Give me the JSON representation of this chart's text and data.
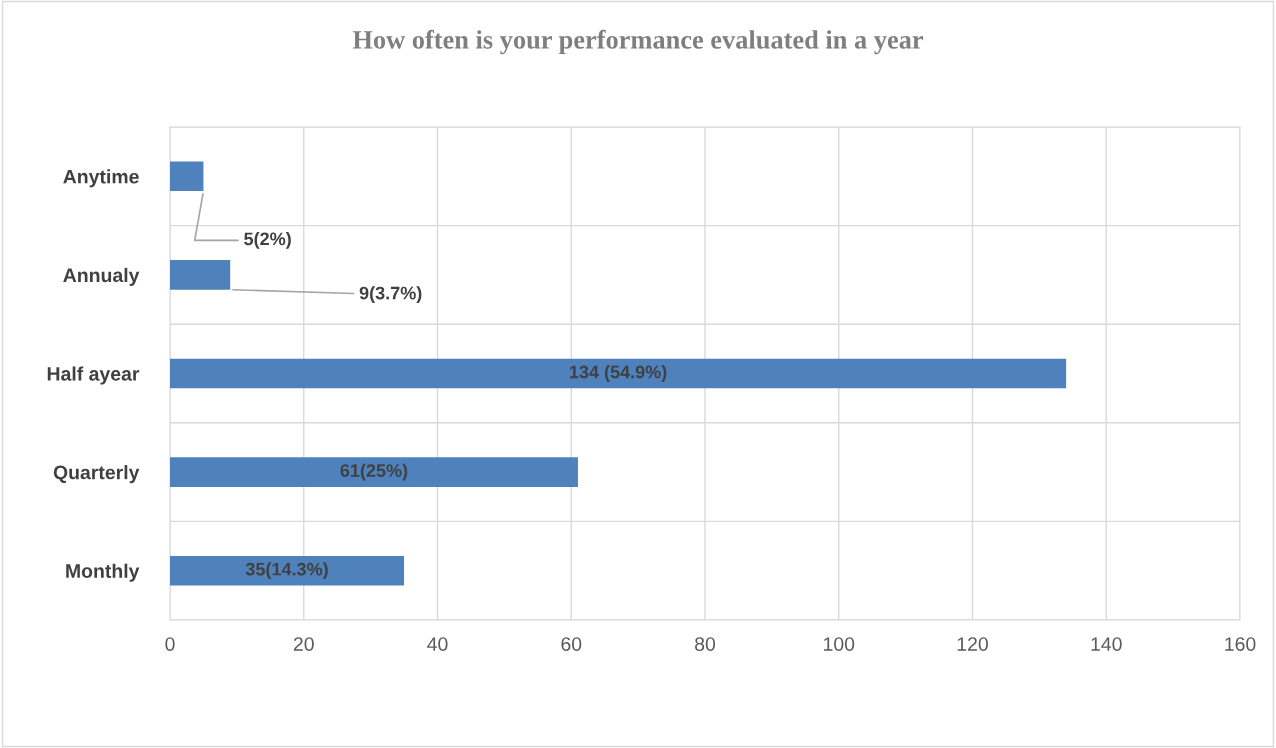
{
  "chart_data": {
    "type": "bar",
    "orientation": "horizontal",
    "title": "How often is your performance evaluated in a year",
    "categories": [
      "Anytime",
      "Annualy",
      "Half ayear",
      "Quarterly",
      "Monthly"
    ],
    "values": [
      5,
      9,
      134,
      61,
      35
    ],
    "value_labels": [
      "5(2%)",
      "9(3.7%)",
      "134 (54.9%)",
      "61(25%)",
      "35(14.3%)"
    ],
    "color": "#4f81bd",
    "xlim": [
      0,
      160
    ],
    "xticks": [
      0,
      20,
      40,
      60,
      80,
      100,
      120,
      140,
      160
    ],
    "grid": true
  }
}
